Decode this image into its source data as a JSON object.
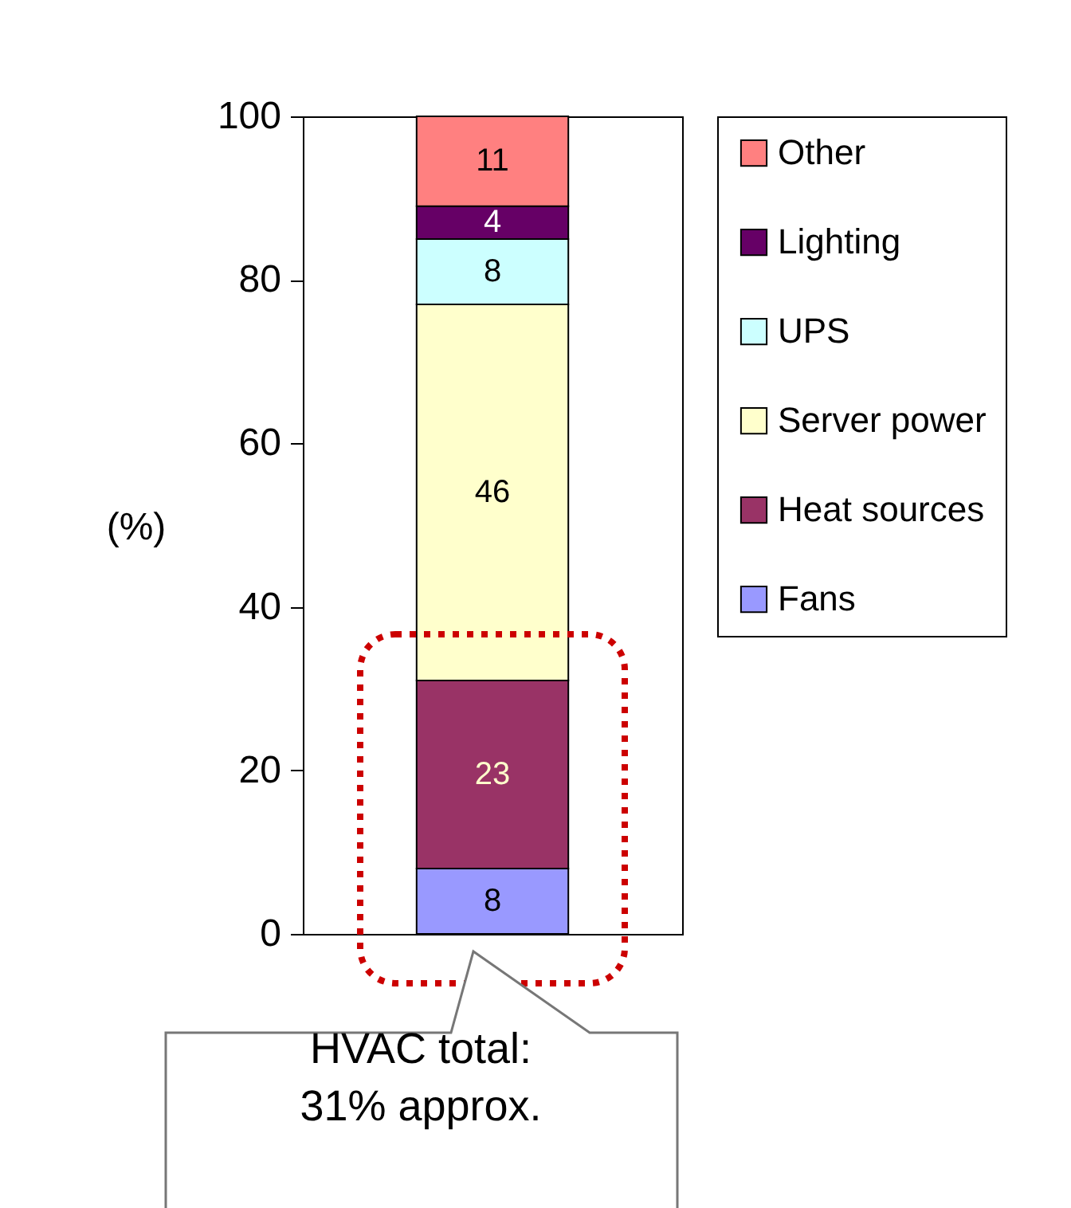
{
  "chart_data": {
    "type": "bar",
    "stacked": true,
    "categories": [
      null
    ],
    "ylabel": "(%)",
    "ylim": [
      0,
      100
    ],
    "yticks": [
      0,
      20,
      40,
      60,
      80,
      100
    ],
    "grid": false,
    "legend": "right",
    "data_labels": true,
    "series": [
      {
        "name": "Fans",
        "color": "#9999ff",
        "values": [
          8
        ]
      },
      {
        "name": "Heat sources",
        "color": "#993366",
        "values": [
          23
        ]
      },
      {
        "name": "Server power",
        "color": "#ffffcc",
        "values": [
          46
        ]
      },
      {
        "name": "UPS",
        "color": "#ccffff",
        "values": [
          8
        ]
      },
      {
        "name": "Lighting",
        "color": "#660066",
        "values": [
          4
        ]
      },
      {
        "name": "Other",
        "color": "#ff8080",
        "values": [
          11
        ]
      }
    ],
    "annotations": [
      "HVAC total: 31% approx."
    ]
  }
}
